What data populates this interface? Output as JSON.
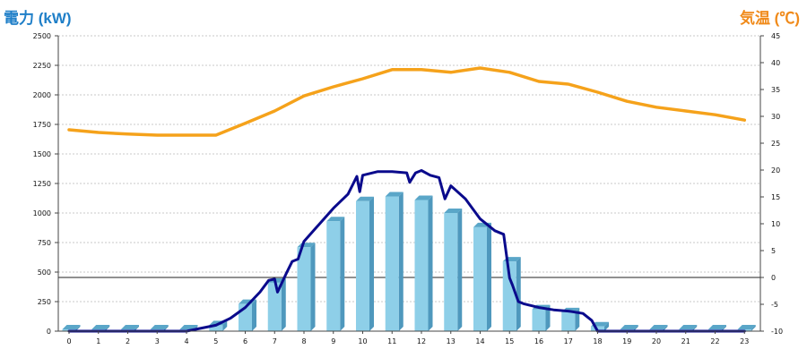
{
  "chart_data": {
    "type": "bar",
    "title": "",
    "xlabel": "",
    "ylabel_left": "電力 (kW)",
    "ylabel_right": "気温 (℃)",
    "categories": [
      "0",
      "1",
      "2",
      "3",
      "4",
      "5",
      "6",
      "7",
      "8",
      "9",
      "10",
      "11",
      "12",
      "13",
      "14",
      "15",
      "16",
      "17",
      "18",
      "19",
      "20",
      "21",
      "22",
      "23"
    ],
    "ylim_left": [
      0,
      2500
    ],
    "ylim_right": [
      -10,
      45
    ],
    "yticks_left": [
      0,
      250,
      500,
      750,
      1000,
      1250,
      1500,
      1750,
      2000,
      2250,
      2500
    ],
    "yticks_right": [
      -10,
      -5,
      0,
      5,
      10,
      15,
      20,
      25,
      30,
      35,
      40,
      45
    ],
    "grid": true,
    "series": [
      {
        "kind": "bar",
        "axis": "left",
        "color": "#8ecfe8",
        "values": [
          15,
          15,
          15,
          15,
          15,
          50,
          230,
          410,
          710,
          930,
          1100,
          1140,
          1110,
          1000,
          880,
          590,
          185,
          160,
          40,
          15,
          15,
          15,
          15,
          15
        ]
      },
      {
        "kind": "line",
        "axis": "left",
        "color": "#0a0a8c",
        "x": [
          0,
          4,
          5,
          5.5,
          6,
          6.5,
          6.8,
          7,
          7.1,
          7.4,
          7.6,
          7.8,
          8,
          8.5,
          9,
          9.5,
          9.8,
          9.9,
          10,
          10.5,
          11,
          11.5,
          11.6,
          11.8,
          12,
          12.3,
          12.6,
          12.8,
          13,
          13.5,
          14,
          14.5,
          14.8,
          15,
          15.1,
          15.3,
          15.5,
          16,
          16.5,
          17,
          17.5,
          17.8,
          18,
          23
        ],
        "y": [
          0,
          0,
          50,
          110,
          200,
          330,
          430,
          440,
          330,
          490,
          590,
          610,
          760,
          900,
          1040,
          1160,
          1310,
          1180,
          1320,
          1350,
          1350,
          1340,
          1260,
          1340,
          1360,
          1320,
          1300,
          1120,
          1230,
          1120,
          950,
          850,
          820,
          450,
          390,
          250,
          230,
          200,
          180,
          170,
          150,
          90,
          0,
          0
        ]
      },
      {
        "kind": "line",
        "axis": "right",
        "color": "#f5a21b",
        "x": [
          0,
          1,
          2,
          3,
          4,
          5,
          6,
          7,
          8,
          9,
          10,
          11,
          12,
          13,
          14,
          15,
          16,
          17,
          18,
          19,
          20,
          21,
          22,
          23
        ],
        "y": [
          27.5,
          27,
          26.7,
          26.5,
          26.5,
          26.5,
          28.7,
          31,
          33.8,
          35.5,
          37,
          38.7,
          38.7,
          38.2,
          39,
          38.2,
          36.5,
          36,
          34.5,
          32.8,
          31.7,
          31,
          30.3,
          29.3
        ]
      }
    ]
  }
}
